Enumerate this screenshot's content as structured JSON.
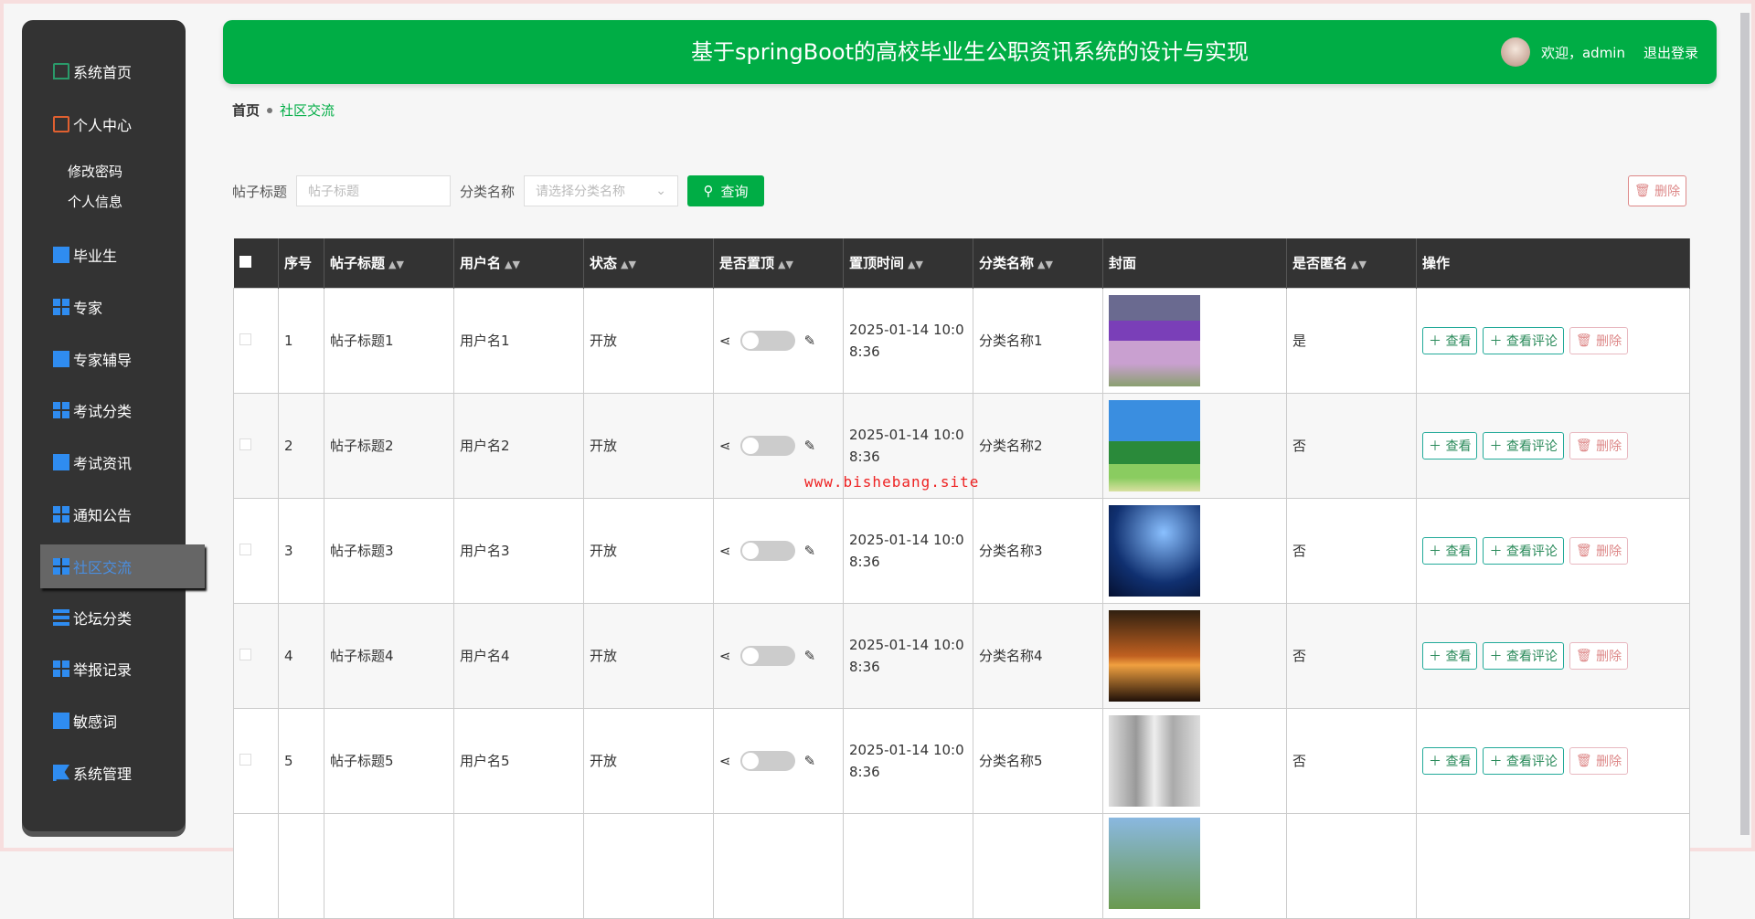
{
  "sidebar": {
    "items": [
      {
        "label": "系统首页",
        "icon": "home-icon"
      },
      {
        "label": "个人中心",
        "icon": "wallet-icon"
      },
      {
        "label": "修改密码"
      },
      {
        "label": "个人信息"
      },
      {
        "label": "毕业生",
        "icon": "monitor-icon"
      },
      {
        "label": "专家",
        "icon": "grid-icon"
      },
      {
        "label": "专家辅导",
        "icon": "monitor-icon"
      },
      {
        "label": "考试分类",
        "icon": "apps-icon"
      },
      {
        "label": "考试资讯",
        "icon": "chart-icon"
      },
      {
        "label": "通知公告",
        "icon": "grid-icon"
      },
      {
        "label": "社区交流",
        "icon": "grid-icon",
        "active": true
      },
      {
        "label": "论坛分类",
        "icon": "list-icon"
      },
      {
        "label": "举报记录",
        "icon": "grid-icon"
      },
      {
        "label": "敏感词",
        "icon": "book-icon"
      },
      {
        "label": "系统管理",
        "icon": "flag-icon"
      }
    ]
  },
  "header": {
    "title": "基于springBoot的高校毕业生公职资讯系统的设计与实现",
    "welcome": "欢迎，admin",
    "logout": "退出登录",
    "color": "#00ad45"
  },
  "breadcrumb": {
    "home": "首页",
    "current": "社区交流"
  },
  "search": {
    "title_label": "帖子标题",
    "title_placeholder": "帖子标题",
    "category_label": "分类名称",
    "category_placeholder": "请选择分类名称",
    "query": "查询",
    "delete": "删除"
  },
  "table": {
    "headers": [
      "序号",
      "帖子标题",
      "用户名",
      "状态",
      "是否置顶",
      "置顶时间",
      "分类名称",
      "封面",
      "是否匿名",
      "操作"
    ],
    "rows": [
      {
        "no": "1",
        "title": "帖子标题1",
        "user": "用户名1",
        "status": "开放",
        "time": "2025-01-14 10:08:36",
        "category": "分类名称1",
        "anon": "是",
        "pinned": false
      },
      {
        "no": "2",
        "title": "帖子标题2",
        "user": "用户名2",
        "status": "开放",
        "time": "2025-01-14 10:08:36",
        "category": "分类名称2",
        "anon": "否",
        "pinned": false
      },
      {
        "no": "3",
        "title": "帖子标题3",
        "user": "用户名3",
        "status": "开放",
        "time": "2025-01-14 10:08:36",
        "category": "分类名称3",
        "anon": "否",
        "pinned": false
      },
      {
        "no": "4",
        "title": "帖子标题4",
        "user": "用户名4",
        "status": "开放",
        "time": "2025-01-14 10:08:36",
        "category": "分类名称4",
        "anon": "否",
        "pinned": false
      },
      {
        "no": "5",
        "title": "帖子标题5",
        "user": "用户名5",
        "status": "开放",
        "time": "2025-01-14 10:08:36",
        "category": "分类名称5",
        "anon": "否",
        "pinned": false
      }
    ],
    "actions": {
      "view": "查看",
      "comments": "查看评论",
      "delete": "删除"
    }
  },
  "watermark": "www.bishebang.site"
}
